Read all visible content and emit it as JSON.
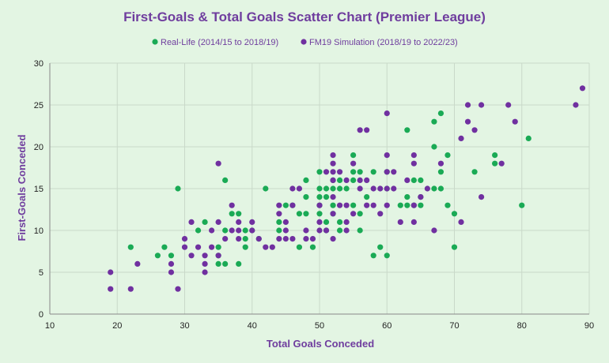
{
  "chart_data": {
    "type": "scatter",
    "title": "First-Goals & Total Goals Scatter Chart (Premier League)",
    "xlabel": "Total Goals Conceded",
    "ylabel": "First-Goals Conceded",
    "xlim": [
      10,
      90
    ],
    "ylim": [
      0,
      30
    ],
    "xticks": [
      10,
      20,
      30,
      40,
      50,
      60,
      70,
      80,
      90
    ],
    "yticks": [
      0,
      5,
      10,
      15,
      20,
      25,
      30
    ],
    "grid": true,
    "legend_position": "top",
    "series": [
      {
        "name": "Real-Life (2014/15 to 2018/19)",
        "color": "#1aaa55",
        "points": [
          [
            22,
            8
          ],
          [
            26,
            7
          ],
          [
            27,
            8
          ],
          [
            28,
            7
          ],
          [
            29,
            15
          ],
          [
            32,
            10
          ],
          [
            33,
            11
          ],
          [
            35,
            8
          ],
          [
            35,
            7
          ],
          [
            35,
            6
          ],
          [
            36,
            16
          ],
          [
            36,
            10
          ],
          [
            36,
            6
          ],
          [
            37,
            12
          ],
          [
            38,
            12
          ],
          [
            38,
            6
          ],
          [
            39,
            10
          ],
          [
            39,
            9
          ],
          [
            39,
            8
          ],
          [
            40,
            10
          ],
          [
            41,
            9
          ],
          [
            42,
            15
          ],
          [
            44,
            11
          ],
          [
            44,
            10
          ],
          [
            45,
            13
          ],
          [
            46,
            13
          ],
          [
            47,
            12
          ],
          [
            47,
            8
          ],
          [
            48,
            16
          ],
          [
            48,
            14
          ],
          [
            48,
            12
          ],
          [
            49,
            8
          ],
          [
            50,
            17
          ],
          [
            50,
            15
          ],
          [
            50,
            14
          ],
          [
            50,
            13
          ],
          [
            50,
            12
          ],
          [
            51,
            15
          ],
          [
            51,
            14
          ],
          [
            51,
            11
          ],
          [
            51,
            10
          ],
          [
            52,
            16
          ],
          [
            52,
            15
          ],
          [
            52,
            13
          ],
          [
            52,
            12
          ],
          [
            53,
            16
          ],
          [
            53,
            15
          ],
          [
            53,
            11
          ],
          [
            53,
            10
          ],
          [
            54,
            15
          ],
          [
            55,
            19
          ],
          [
            55,
            17
          ],
          [
            55,
            16
          ],
          [
            55,
            13
          ],
          [
            56,
            17
          ],
          [
            56,
            12
          ],
          [
            56,
            10
          ],
          [
            57,
            14
          ],
          [
            58,
            17
          ],
          [
            58,
            7
          ],
          [
            59,
            8
          ],
          [
            60,
            17
          ],
          [
            60,
            15
          ],
          [
            60,
            7
          ],
          [
            62,
            13
          ],
          [
            63,
            22
          ],
          [
            63,
            14
          ],
          [
            63,
            13
          ],
          [
            64,
            16
          ],
          [
            64,
            13
          ],
          [
            65,
            16
          ],
          [
            65,
            14
          ],
          [
            65,
            13
          ],
          [
            67,
            23
          ],
          [
            67,
            20
          ],
          [
            67,
            15
          ],
          [
            68,
            24
          ],
          [
            68,
            17
          ],
          [
            68,
            15
          ],
          [
            69,
            19
          ],
          [
            69,
            13
          ],
          [
            70,
            12
          ],
          [
            70,
            8
          ],
          [
            73,
            17
          ],
          [
            76,
            19
          ],
          [
            76,
            18
          ],
          [
            80,
            13
          ],
          [
            81,
            21
          ]
        ]
      },
      {
        "name": "FM19 Simulation (2018/19 to 2022/23)",
        "color": "#7030a0",
        "points": [
          [
            19,
            5
          ],
          [
            19,
            3
          ],
          [
            22,
            3
          ],
          [
            23,
            6
          ],
          [
            28,
            6
          ],
          [
            28,
            5
          ],
          [
            29,
            3
          ],
          [
            30,
            9
          ],
          [
            30,
            8
          ],
          [
            31,
            11
          ],
          [
            31,
            7
          ],
          [
            32,
            8
          ],
          [
            33,
            7
          ],
          [
            33,
            6
          ],
          [
            33,
            5
          ],
          [
            34,
            10
          ],
          [
            34,
            8
          ],
          [
            35,
            18
          ],
          [
            35,
            11
          ],
          [
            35,
            7
          ],
          [
            36,
            9
          ],
          [
            37,
            13
          ],
          [
            37,
            10
          ],
          [
            38,
            11
          ],
          [
            38,
            10
          ],
          [
            38,
            9
          ],
          [
            40,
            11
          ],
          [
            40,
            10
          ],
          [
            41,
            9
          ],
          [
            42,
            8
          ],
          [
            43,
            8
          ],
          [
            44,
            13
          ],
          [
            44,
            12
          ],
          [
            44,
            9
          ],
          [
            45,
            11
          ],
          [
            45,
            10
          ],
          [
            45,
            9
          ],
          [
            46,
            15
          ],
          [
            46,
            13
          ],
          [
            46,
            9
          ],
          [
            47,
            15
          ],
          [
            48,
            10
          ],
          [
            48,
            9
          ],
          [
            49,
            9
          ],
          [
            50,
            13
          ],
          [
            50,
            11
          ],
          [
            50,
            10
          ],
          [
            51,
            17
          ],
          [
            51,
            10
          ],
          [
            52,
            19
          ],
          [
            52,
            18
          ],
          [
            52,
            17
          ],
          [
            52,
            16
          ],
          [
            52,
            14
          ],
          [
            52,
            12
          ],
          [
            52,
            9
          ],
          [
            53,
            17
          ],
          [
            53,
            13
          ],
          [
            54,
            16
          ],
          [
            54,
            13
          ],
          [
            54,
            11
          ],
          [
            54,
            10
          ],
          [
            55,
            18
          ],
          [
            55,
            12
          ],
          [
            56,
            22
          ],
          [
            56,
            16
          ],
          [
            56,
            15
          ],
          [
            57,
            22
          ],
          [
            57,
            16
          ],
          [
            57,
            13
          ],
          [
            58,
            15
          ],
          [
            58,
            13
          ],
          [
            59,
            15
          ],
          [
            59,
            12
          ],
          [
            60,
            24
          ],
          [
            60,
            19
          ],
          [
            60,
            17
          ],
          [
            60,
            15
          ],
          [
            60,
            13
          ],
          [
            61,
            17
          ],
          [
            61,
            15
          ],
          [
            62,
            11
          ],
          [
            63,
            16
          ],
          [
            64,
            19
          ],
          [
            64,
            18
          ],
          [
            64,
            13
          ],
          [
            64,
            11
          ],
          [
            65,
            14
          ],
          [
            66,
            15
          ],
          [
            67,
            10
          ],
          [
            68,
            18
          ],
          [
            71,
            21
          ],
          [
            71,
            11
          ],
          [
            72,
            25
          ],
          [
            72,
            23
          ],
          [
            73,
            22
          ],
          [
            74,
            25
          ],
          [
            74,
            14
          ],
          [
            77,
            18
          ],
          [
            78,
            25
          ],
          [
            79,
            23
          ],
          [
            88,
            25
          ],
          [
            89,
            27
          ]
        ]
      }
    ]
  }
}
